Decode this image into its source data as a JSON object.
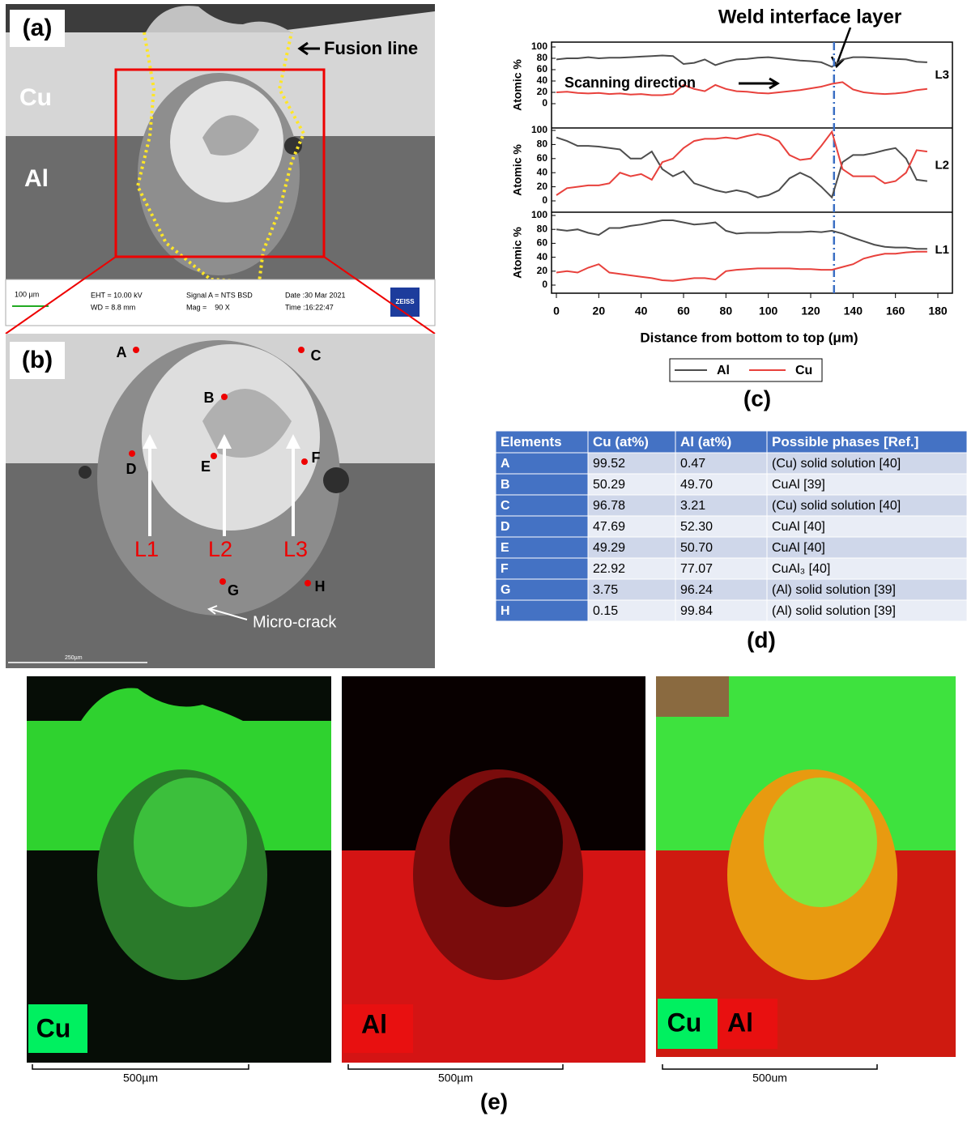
{
  "panel_a": {
    "label": "(a)",
    "cu": "Cu",
    "al": "Al",
    "fusion_line": "Fusion line",
    "scale": "100 µm",
    "eht": "EHT = 10.00 kV",
    "wd": "WD = 8.8 mm",
    "signal": "Signal A = NTS BSD",
    "mag": "Mag =    90 X",
    "date": "Date :30 Mar 2021",
    "time": "Time :16:22:47",
    "brand": "ZEISS"
  },
  "panel_b": {
    "label": "(b)",
    "points": [
      "A",
      "B",
      "C",
      "D",
      "E",
      "F",
      "G",
      "H"
    ],
    "lines": [
      "L1",
      "L2",
      "L3"
    ],
    "crack": "Micro-crack",
    "scale": "250µm"
  },
  "chart_data": [
    {
      "type": "line",
      "label": "L3",
      "y_label": "Atomic %",
      "xlim": [
        0,
        180
      ],
      "ylim": [
        0,
        100
      ],
      "yticks": [
        0,
        20,
        40,
        60,
        80,
        100
      ],
      "annotations": [
        "Weld interface layer",
        "Scanning direction"
      ],
      "interface_x": 131,
      "x": [
        0,
        5,
        10,
        15,
        20,
        25,
        30,
        35,
        40,
        45,
        50,
        55,
        60,
        65,
        70,
        75,
        80,
        85,
        90,
        95,
        100,
        105,
        110,
        115,
        120,
        125,
        130,
        135,
        140,
        145,
        150,
        155,
        160,
        165,
        170,
        175
      ],
      "series": [
        {
          "name": "Al",
          "color": "#4d4d4d",
          "values": [
            78,
            80,
            80,
            82,
            80,
            81,
            81,
            82,
            83,
            84,
            85,
            84,
            70,
            72,
            78,
            68,
            74,
            78,
            79,
            81,
            82,
            80,
            78,
            76,
            75,
            73,
            65,
            78,
            82,
            82,
            81,
            80,
            79,
            78,
            74,
            73
          ]
        },
        {
          "name": "Cu",
          "color": "#e8413c",
          "values": [
            20,
            21,
            19,
            18,
            19,
            17,
            18,
            16,
            17,
            15,
            15,
            17,
            33,
            26,
            22,
            33,
            26,
            22,
            21,
            19,
            18,
            20,
            22,
            24,
            27,
            30,
            35,
            38,
            25,
            20,
            18,
            17,
            18,
            20,
            24,
            26
          ]
        }
      ]
    },
    {
      "type": "line",
      "label": "L2",
      "y_label": "Atomic %",
      "xlim": [
        0,
        180
      ],
      "ylim": [
        0,
        100
      ],
      "yticks": [
        0,
        20,
        40,
        60,
        80,
        100
      ],
      "x": [
        0,
        5,
        10,
        15,
        20,
        25,
        30,
        35,
        40,
        45,
        50,
        55,
        60,
        65,
        70,
        75,
        80,
        85,
        90,
        95,
        100,
        105,
        110,
        115,
        120,
        125,
        130,
        135,
        140,
        145,
        150,
        155,
        160,
        165,
        170,
        175
      ],
      "series": [
        {
          "color": "#4d4d4d",
          "values": [
            90,
            85,
            78,
            78,
            77,
            75,
            73,
            60,
            60,
            70,
            45,
            35,
            42,
            25,
            20,
            15,
            12,
            15,
            12,
            5,
            8,
            15,
            32,
            40,
            33,
            20,
            5,
            55,
            65,
            65,
            68,
            72,
            75,
            60,
            30,
            28
          ]
        },
        {
          "color": "#e8413c",
          "values": [
            8,
            18,
            20,
            22,
            22,
            25,
            40,
            35,
            38,
            30,
            55,
            60,
            75,
            85,
            88,
            88,
            90,
            88,
            92,
            95,
            92,
            85,
            65,
            58,
            60,
            78,
            98,
            45,
            35,
            35,
            35,
            25,
            28,
            40,
            72,
            70
          ]
        }
      ]
    },
    {
      "type": "line",
      "label": "L1",
      "y_label": "Atomic %",
      "xlim": [
        0,
        180
      ],
      "ylim": [
        0,
        100
      ],
      "yticks": [
        0,
        20,
        40,
        60,
        80,
        100
      ],
      "xticks": [
        0,
        20,
        40,
        60,
        80,
        100,
        120,
        140,
        160,
        180
      ],
      "x_label": "Distance from bottom to top (μm)",
      "x": [
        0,
        5,
        10,
        15,
        20,
        25,
        30,
        35,
        40,
        45,
        50,
        55,
        60,
        65,
        70,
        75,
        80,
        85,
        90,
        95,
        100,
        105,
        110,
        115,
        120,
        125,
        130,
        135,
        140,
        145,
        150,
        155,
        160,
        165,
        170,
        175
      ],
      "series": [
        {
          "color": "#4d4d4d",
          "values": [
            80,
            78,
            80,
            75,
            72,
            82,
            82,
            85,
            87,
            90,
            93,
            93,
            90,
            87,
            88,
            90,
            78,
            74,
            75,
            75,
            75,
            76,
            76,
            76,
            77,
            76,
            78,
            74,
            68,
            63,
            58,
            55,
            54,
            54,
            52,
            52
          ]
        },
        {
          "color": "#e8413c",
          "values": [
            18,
            20,
            18,
            25,
            30,
            18,
            16,
            14,
            12,
            10,
            7,
            6,
            8,
            10,
            10,
            8,
            20,
            22,
            23,
            24,
            24,
            24,
            24,
            23,
            23,
            22,
            22,
            26,
            30,
            38,
            42,
            45,
            45,
            47,
            48,
            48
          ]
        }
      ]
    }
  ],
  "panel_c": {
    "label": "(c)"
  },
  "table": {
    "header": [
      "Elements",
      "Cu (at%)",
      "Al (at%)",
      "Possible phases [Ref.]"
    ],
    "rows": [
      [
        "A",
        "99.52",
        "0.47",
        "(Cu) solid solution  [40]"
      ],
      [
        "B",
        "50.29",
        "49.70",
        "CuAl [39]"
      ],
      [
        "C",
        "96.78",
        "3.21",
        "(Cu) solid solution [40]"
      ],
      [
        "D",
        "47.69",
        "52.30",
        "CuAl [40]"
      ],
      [
        "E",
        "49.29",
        "50.70",
        "CuAl [40]"
      ],
      [
        "F",
        "22.92",
        "77.07",
        "CuAl₃ [40]"
      ],
      [
        "G",
        "3.75",
        "96.24",
        "(Al) solid solution [39]"
      ],
      [
        "H",
        "0.15",
        "99.84",
        "(Al) solid solution [39]"
      ]
    ]
  },
  "panel_d": {
    "label": "(d)"
  },
  "panel_e": {
    "maps": [
      "Cu",
      "Al"
    ],
    "overlay": [
      "Cu",
      "Al"
    ],
    "scales": [
      "500µm",
      "500µm",
      "500um"
    ],
    "label": "(e)"
  }
}
